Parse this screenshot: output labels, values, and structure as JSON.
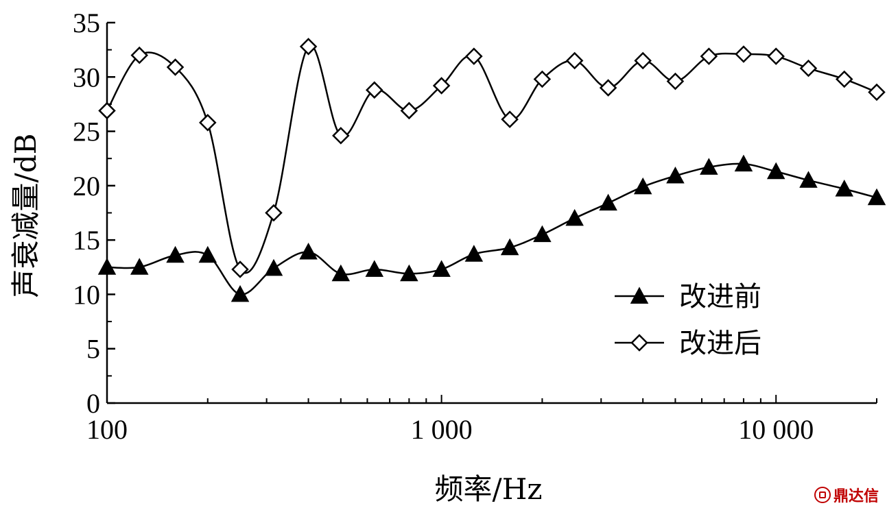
{
  "chart_data": {
    "type": "line",
    "title": "",
    "xlabel": "频率/Hz",
    "ylabel": "声衰减量/dB",
    "xscale": "log",
    "xlim": [
      100,
      20000
    ],
    "ylim": [
      0,
      35
    ],
    "x_ticks": [
      {
        "value": 100,
        "label": "100"
      },
      {
        "value": 1000,
        "label": "1 000"
      },
      {
        "value": 10000,
        "label": "10 000"
      }
    ],
    "y_ticks": [
      {
        "value": 0,
        "label": "0"
      },
      {
        "value": 5,
        "label": "5"
      },
      {
        "value": 10,
        "label": "10"
      },
      {
        "value": 15,
        "label": "15"
      },
      {
        "value": 20,
        "label": "20"
      },
      {
        "value": 25,
        "label": "25"
      },
      {
        "value": 30,
        "label": "30"
      },
      {
        "value": 35,
        "label": "35"
      }
    ],
    "grid": false,
    "legend_position": "lower-right",
    "x": [
      100,
      125,
      160,
      200,
      250,
      315,
      400,
      500,
      630,
      800,
      1000,
      1250,
      1600,
      2000,
      2500,
      3150,
      4000,
      5000,
      6300,
      8000,
      10000,
      12500,
      16000,
      20000
    ],
    "series": [
      {
        "name": "改进前",
        "marker": "filled-triangle",
        "color": "#000000",
        "values": [
          12.5,
          12.5,
          13.6,
          13.6,
          10.0,
          12.4,
          13.9,
          11.9,
          12.3,
          11.9,
          12.3,
          13.7,
          14.3,
          15.5,
          17.0,
          18.4,
          19.9,
          20.9,
          21.7,
          22.0,
          21.3,
          20.5,
          19.7,
          18.9
        ]
      },
      {
        "name": "改进后",
        "marker": "open-diamond",
        "color": "#000000",
        "values": [
          26.9,
          32.0,
          30.9,
          25.8,
          12.3,
          17.5,
          32.8,
          24.6,
          28.8,
          26.9,
          29.2,
          31.9,
          26.1,
          29.8,
          31.5,
          29.0,
          31.5,
          29.6,
          31.9,
          32.1,
          31.9,
          30.8,
          29.8,
          28.6
        ]
      }
    ]
  },
  "watermark": {
    "text": "鼎达信",
    "color": "#c00000"
  }
}
